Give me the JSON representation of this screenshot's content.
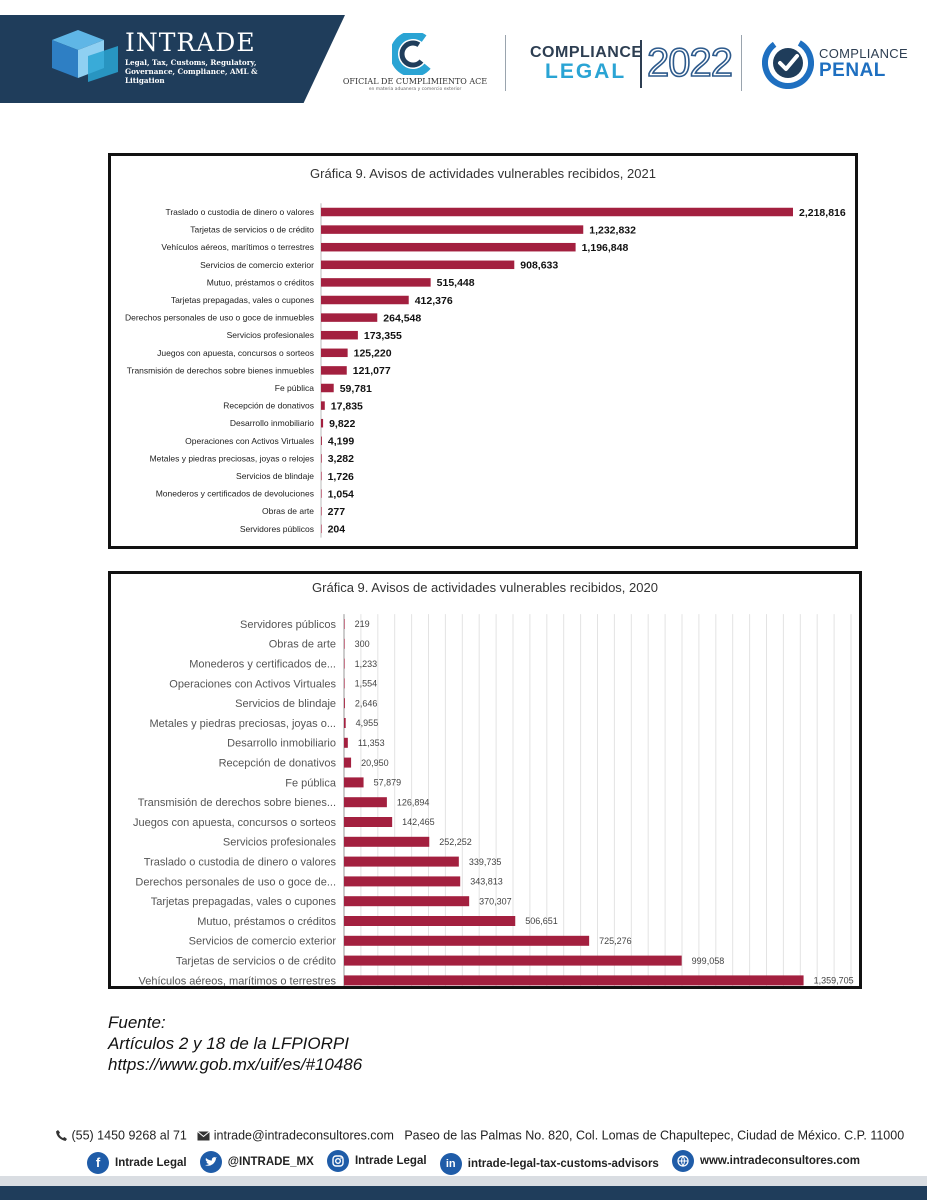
{
  "header": {
    "brand": "INTRADE",
    "tagline": "Legal, Tax, Customs, Regulatory, Governance, Compliance, AML & Litigation",
    "ace_title": "OFICIAL DE CUMPLIMIENTO ACE",
    "ace_subtitle": "en materia aduanera y comercio exterior",
    "compliance_legal_top": "COMPLIANCE",
    "compliance_legal_bottom": "LEGAL",
    "compliance_legal_year": "2022",
    "compliance_penal_top": "COMPLIANCE",
    "compliance_penal_bottom": "PENAL",
    "colors": {
      "navy": "#1f3d5b",
      "sky": "#2aa4d4",
      "blue": "#1e6fc0"
    }
  },
  "chart_data": [
    {
      "type": "bar",
      "orientation": "horizontal",
      "title": "Gráfica  9. Avisos de actividades vulnerables recibidos, 2021",
      "bar_color": "#a3203f",
      "categories": [
        "Traslado o custodia de dinero o valores",
        "Tarjetas de servicios o de crédito",
        "Vehículos aéreos, marítimos o terrestres",
        "Servicios de comercio exterior",
        "Mutuo, préstamos o créditos",
        "Tarjetas prepagadas, vales o cupones",
        "Derechos personales de uso o goce de inmuebles",
        "Servicios profesionales",
        "Juegos con apuesta, concursos o sorteos",
        "Transmisión de derechos sobre bienes inmuebles",
        "Fe pública",
        "Recepción de donativos",
        "Desarrollo inmobiliario",
        "Operaciones con Activos Virtuales",
        "Metales y piedras preciosas, joyas o relojes",
        "Servicios de blindaje",
        "Monederos y certificados de devoluciones",
        "Obras de arte",
        "Servidores públicos"
      ],
      "values": [
        2218816,
        1232832,
        1196848,
        908633,
        515448,
        412376,
        264548,
        173355,
        125220,
        121077,
        59781,
        17835,
        9822,
        4199,
        3282,
        1726,
        1054,
        277,
        204
      ],
      "data_labels": [
        "2,218,816",
        "1,232,832",
        "1,196,848",
        "908,633",
        "515,448",
        "412,376",
        "264,548",
        "173,355",
        "125,220",
        "121,077",
        "59,781",
        "17,835",
        "9,822",
        "4,199",
        "3,282",
        "1,726",
        "1,054",
        "277",
        "204"
      ],
      "xlim": [
        0,
        2218816
      ],
      "grid": false
    },
    {
      "type": "bar",
      "orientation": "horizontal",
      "title": "Gráfica  9. Avisos de actividades vulnerables recibidos, 2020",
      "bar_color": "#a3203f",
      "categories": [
        "Servidores públicos",
        "Obras de arte",
        "Monederos y certificados de...",
        "Operaciones con Activos Virtuales",
        "Servicios de blindaje",
        "Metales y piedras preciosas, joyas o...",
        "Desarrollo inmobiliario",
        "Recepción de donativos",
        "Fe pública",
        "Transmisión de derechos sobre bienes...",
        "Juegos con apuesta, concursos o sorteos",
        "Servicios profesionales",
        "Traslado o custodia de dinero o valores",
        "Derechos personales de uso o goce de...",
        "Tarjetas prepagadas, vales o cupones",
        "Mutuo, préstamos o créditos",
        "Servicios de comercio exterior",
        "Tarjetas de servicios o de crédito",
        "Vehículos aéreos, marítimos o terrestres"
      ],
      "values": [
        219,
        300,
        1233,
        1554,
        2646,
        4955,
        11353,
        20950,
        57879,
        126894,
        142465,
        252252,
        339735,
        343813,
        370307,
        506651,
        725276,
        999058,
        1359705
      ],
      "data_labels": [
        "219",
        "300",
        "1,233",
        "1,554",
        "2,646",
        "4,955",
        "11,353",
        "20,950",
        "57,879",
        "126,894",
        "142,465",
        "252,252",
        "339,735",
        "343,813",
        "370,307",
        "506,651",
        "725,276",
        "999,058",
        "1,359,705"
      ],
      "xlim": [
        0,
        1500000
      ],
      "grid": true
    }
  ],
  "source": {
    "label": "Fuente:",
    "line1": "Artículos 2 y 18 de la LFPIORPI",
    "line2": "https://www.gob.mx/uif/es/#10486"
  },
  "footer": {
    "phone": "(55) 1450 9268 al 71",
    "email": "intrade@intradeconsultores.com",
    "address": "Paseo de las Palmas No. 820, Col. Lomas de Chapultepec, Ciudad de México. C.P. 11000",
    "facebook": "Intrade Legal",
    "twitter": "@INTRADE_MX",
    "instagram": "Intrade Legal",
    "linkedin": "intrade-legal-tax-customs-advisors",
    "website": "www.intradeconsultores.com",
    "icons": [
      "phone-icon",
      "email-icon",
      "facebook-icon",
      "twitter-icon",
      "instagram-icon",
      "linkedin-icon",
      "globe-icon"
    ]
  }
}
